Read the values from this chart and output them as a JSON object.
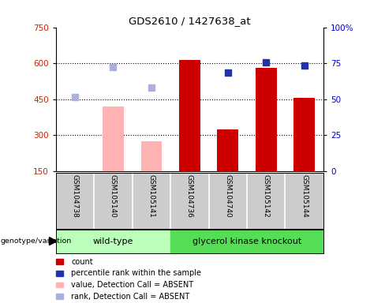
{
  "title": "GDS2610 / 1427638_at",
  "samples": [
    "GSM104738",
    "GSM105140",
    "GSM105141",
    "GSM104736",
    "GSM104740",
    "GSM105142",
    "GSM105144"
  ],
  "bar_values": [
    null,
    420,
    275,
    615,
    325,
    580,
    455
  ],
  "bar_colors": [
    "none",
    "#ffb3b3",
    "#ffb3b3",
    "#cc0000",
    "#cc0000",
    "#cc0000",
    "#cc0000"
  ],
  "rank_dots": [
    460,
    585,
    500,
    null,
    null,
    null,
    null
  ],
  "rank_dot_colors": [
    "#aab0dd",
    "#aab0dd",
    "#aab0dd",
    null,
    null,
    null,
    null
  ],
  "blue_dots": [
    null,
    null,
    null,
    null,
    560,
    605,
    590
  ],
  "blue_dot_colors": [
    null,
    null,
    null,
    null,
    "#2233aa",
    "#2233aa",
    "#2233aa"
  ],
  "ylim_left": [
    150,
    750
  ],
  "ylim_right": [
    0,
    100
  ],
  "yticks_left": [
    150,
    300,
    450,
    600,
    750
  ],
  "yticks_right": [
    0,
    25,
    50,
    75,
    100
  ],
  "ytick_labels_right": [
    "0",
    "25",
    "50",
    "75",
    "100%"
  ],
  "grid_lines": [
    300,
    450,
    600
  ],
  "wt_color": "#bbffbb",
  "gk_color": "#55dd55",
  "gray_box_color": "#cccccc",
  "legend_items": [
    {
      "label": "count",
      "color": "#cc0000",
      "type": "rect"
    },
    {
      "label": "percentile rank within the sample",
      "color": "#2233aa",
      "type": "rect"
    },
    {
      "label": "value, Detection Call = ABSENT",
      "color": "#ffb3b3",
      "type": "rect"
    },
    {
      "label": "rank, Detection Call = ABSENT",
      "color": "#aab0dd",
      "type": "rect"
    }
  ]
}
